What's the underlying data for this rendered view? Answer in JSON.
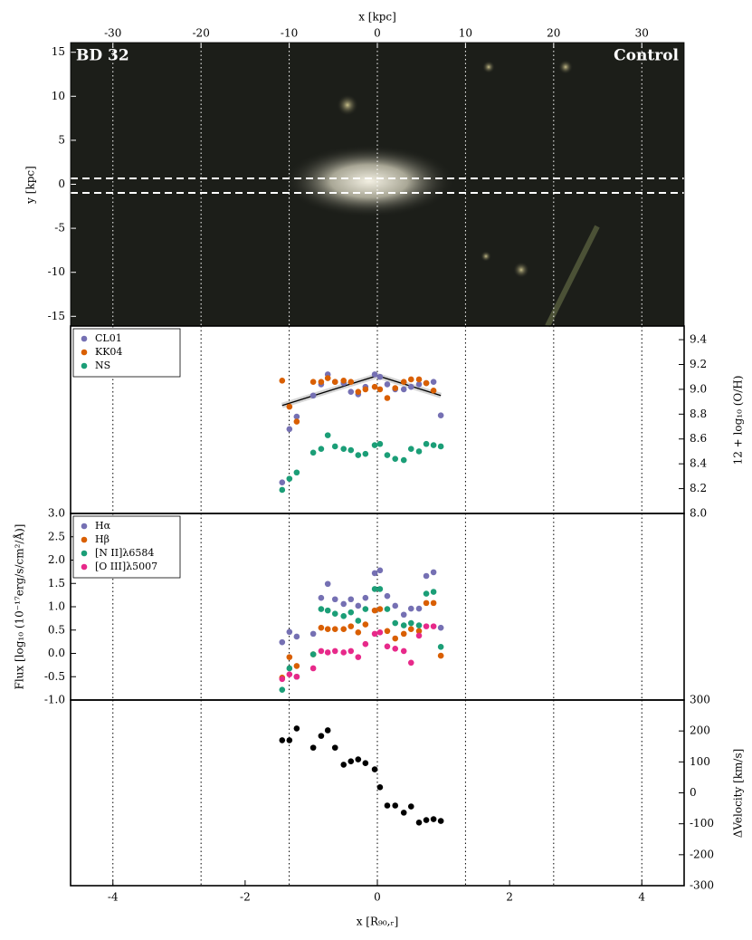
{
  "chart_data": [
    {
      "type": "image",
      "title": "BD 32",
      "label": "Control",
      "xlabel": "x [kpc]",
      "ylabel": "y [kpc]",
      "xlim": [
        -34.8,
        34.8
      ],
      "ylim": [
        -16.1,
        16.1
      ],
      "xticks": [
        -30,
        -20,
        -10,
        0,
        10,
        20,
        30
      ],
      "yticks": [
        -15,
        -10,
        -5,
        0,
        5,
        10,
        15
      ]
    },
    {
      "type": "scatter",
      "ylabel": "12 + log₁₀ (O/H)",
      "legend": "upper left",
      "x": [
        -1.44,
        -1.33,
        -1.22,
        -0.97,
        -0.85,
        -0.75,
        -0.64,
        -0.51,
        -0.4,
        -0.29,
        -0.18,
        -0.04,
        0.04,
        0.15,
        0.27,
        0.4,
        0.51,
        0.63,
        0.74,
        0.85,
        0.96
      ],
      "xlim": [
        -4.64,
        4.64
      ],
      "ylim": [
        8.0,
        9.51
      ],
      "yticks": [
        {
          "value": 8,
          "label": "8.0"
        },
        8.2,
        8.4,
        8.6,
        8.8,
        {
          "value": 9,
          "label": "9.0"
        },
        9.2,
        9.4
      ],
      "series": [
        {
          "name": "CL01",
          "color": "#7570b3",
          "values": [
            8.25,
            8.68,
            8.78,
            8.95,
            9.04,
            9.12,
            9.06,
            9.05,
            8.98,
            8.96,
            9.02,
            9.12,
            9.1,
            9.04,
            9.0,
            9.0,
            9.02,
            9.04,
            9.05,
            9.06,
            8.79
          ]
        },
        {
          "name": "KK04",
          "color": "#d95f02",
          "values": [
            9.07,
            8.86,
            8.74,
            9.06,
            9.06,
            9.09,
            9.06,
            9.07,
            9.06,
            8.98,
            9.0,
            9.02,
            9.0,
            8.93,
            9.01,
            9.06,
            9.08,
            9.08,
            9.05,
            8.99,
            null
          ]
        },
        {
          "name": "NS",
          "color": "#1b9e77",
          "values": [
            8.19,
            8.28,
            8.33,
            8.49,
            8.52,
            8.63,
            8.54,
            8.52,
            8.51,
            8.47,
            8.48,
            8.55,
            8.56,
            8.47,
            8.44,
            8.43,
            8.52,
            8.5,
            8.56,
            8.55,
            8.54
          ]
        }
      ],
      "fit": {
        "x": [
          -1.44,
          0,
          0.96
        ],
        "values": [
          8.87,
          9.11,
          8.95
        ],
        "color": "#000000"
      }
    },
    {
      "type": "scatter",
      "ylabel": "Flux [log₁₀ (10⁻¹⁷erg/s/cm²/Å)]",
      "legend": "upper left",
      "x": [
        -1.44,
        -1.33,
        -1.22,
        -0.97,
        -0.85,
        -0.75,
        -0.64,
        -0.51,
        -0.4,
        -0.29,
        -0.18,
        -0.04,
        0.04,
        0.15,
        0.27,
        0.4,
        0.51,
        0.63,
        0.74,
        0.85,
        0.96
      ],
      "xlim": [
        -4.64,
        4.64
      ],
      "ylim": [
        -1,
        3
      ],
      "yticks": [
        {
          "value": -1,
          "label": "-1.0"
        },
        -0.5,
        {
          "value": 0,
          "label": "0.0"
        },
        0.5,
        {
          "value": 1,
          "label": "1.0"
        },
        1.5,
        {
          "value": 2,
          "label": "2.0"
        },
        2.5,
        {
          "value": 3,
          "label": "3.0"
        }
      ],
      "series": [
        {
          "name": "Hα",
          "color": "#7570b3",
          "values": [
            0.24,
            0.46,
            0.36,
            0.42,
            1.19,
            1.49,
            1.16,
            1.06,
            1.16,
            1.02,
            1.19,
            1.72,
            1.78,
            1.23,
            1.02,
            0.83,
            0.96,
            0.96,
            1.66,
            1.74,
            0.55
          ]
        },
        {
          "name": "Hβ",
          "color": "#d95f02",
          "values": [
            -0.52,
            -0.08,
            -0.27,
            -0.02,
            0.55,
            0.52,
            0.52,
            0.52,
            0.58,
            0.45,
            0.62,
            0.92,
            0.95,
            0.48,
            0.32,
            0.42,
            0.52,
            0.48,
            1.08,
            1.08,
            -0.05
          ]
        },
        {
          "name": "[N II]λ6584",
          "color": "#1b9e77",
          "values": [
            -0.78,
            -0.32,
            -0.5,
            -0.02,
            0.95,
            0.92,
            0.85,
            0.8,
            0.88,
            0.7,
            0.95,
            1.38,
            1.38,
            0.95,
            0.65,
            0.6,
            0.65,
            0.6,
            1.28,
            1.32,
            0.14
          ]
        },
        {
          "name": "[O III]λ5007",
          "color": "#e7298a",
          "values": [
            -0.55,
            -0.45,
            -0.5,
            -0.32,
            0.05,
            0.02,
            0.05,
            0.02,
            0.05,
            -0.08,
            0.2,
            0.42,
            0.45,
            0.15,
            0.1,
            0.05,
            -0.2,
            0.38,
            0.58,
            0.58,
            null
          ]
        }
      ]
    },
    {
      "type": "scatter",
      "ylabel": "ΔVelocity [km/s]",
      "xlabel": "x [R₉₀,ᵣ]",
      "x": [
        -1.44,
        -1.33,
        -1.22,
        -0.97,
        -0.85,
        -0.75,
        -0.64,
        -0.51,
        -0.4,
        -0.29,
        -0.18,
        -0.04,
        0.04,
        0.15,
        0.27,
        0.4,
        0.51,
        0.63,
        0.74,
        0.85,
        0.96
      ],
      "xlim": [
        -4.64,
        4.64
      ],
      "ylim": [
        -300,
        300
      ],
      "xticks": [
        -4,
        -2,
        0,
        2,
        4
      ],
      "yticks": [
        -300,
        -200,
        -100,
        0,
        100,
        200,
        300
      ],
      "series": [
        {
          "color": "#000000",
          "values": [
            170,
            170,
            208,
            146,
            184,
            202,
            146,
            91,
            102,
            108,
            96,
            76,
            18,
            -41,
            -41,
            -64,
            -44,
            -96,
            -88,
            -85,
            -91
          ]
        }
      ]
    }
  ]
}
